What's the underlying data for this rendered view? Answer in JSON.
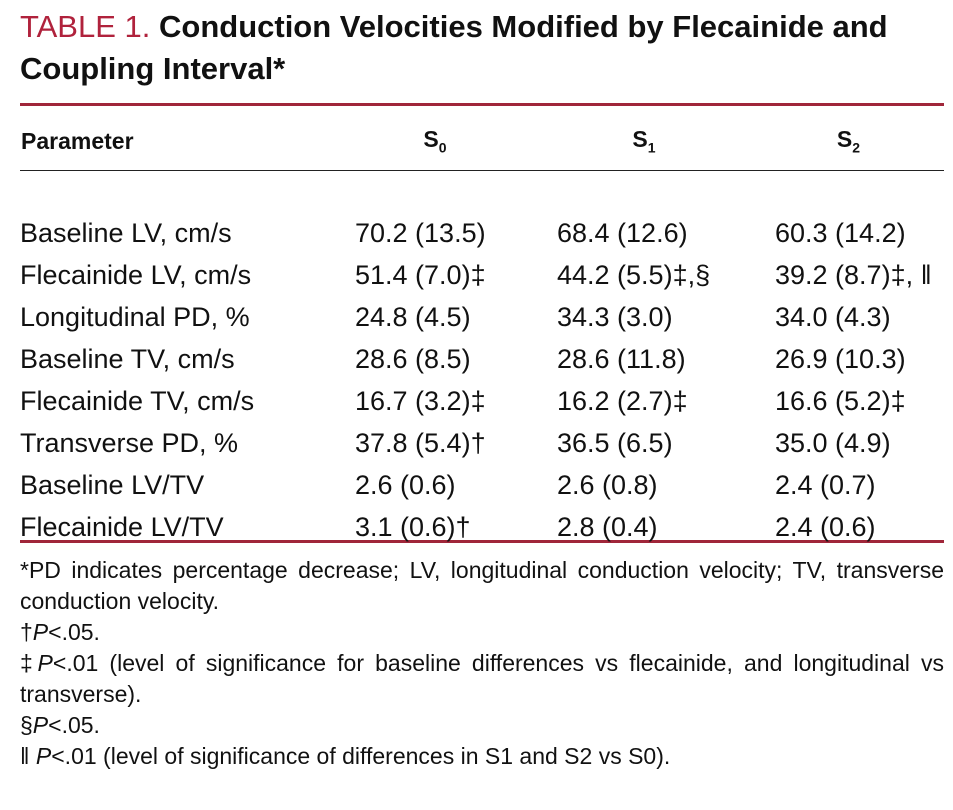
{
  "title": {
    "label": "TABLE 1.",
    "text": "Conduction Velocities Modified by Flecainide and Coupling Interval*"
  },
  "table": {
    "header": [
      {
        "main": "Parameter"
      },
      {
        "main": "S",
        "sub": "0"
      },
      {
        "main": "S",
        "sub": "1"
      },
      {
        "main": "S",
        "sub": "2"
      }
    ],
    "rows": [
      [
        "Baseline LV, cm/s",
        "70.2 (13.5)",
        "68.4 (12.6)",
        "60.3 (14.2)"
      ],
      [
        "Flecainide LV, cm/s",
        "51.4 (7.0)‡",
        "44.2 (5.5)‡,§",
        "39.2 (8.7)‡, ‖"
      ],
      [
        "Longitudinal PD, %",
        "24.8 (4.5)",
        "34.3 (3.0)",
        "34.0 (4.3)"
      ],
      [
        "Baseline TV, cm/s",
        "28.6 (8.5)",
        "28.6 (11.8)",
        "26.9 (10.3)"
      ],
      [
        "Flecainide TV, cm/s",
        "16.7 (3.2)‡",
        "16.2 (2.7)‡",
        "16.6 (5.2)‡"
      ],
      [
        "Transverse PD, %",
        "37.8 (5.4)†",
        "36.5 (6.5)",
        "35.0 (4.9)"
      ],
      [
        "Baseline LV/TV",
        "2.6 (0.6)",
        "2.6 (0.8)",
        "2.4 (0.7)"
      ],
      [
        "Flecainide LV/TV",
        "3.1 (0.6)†",
        "2.8 (0.4)",
        "2.4 (0.6)"
      ]
    ]
  },
  "footnotes": [
    {
      "text": "*PD indicates percentage decrease; LV, longitudinal conduction velocity; TV, transverse conduction velocity."
    },
    {
      "symbol": "†",
      "italic": "P",
      "text": "<.05."
    },
    {
      "symbol": "‡",
      "italic": "P",
      "text": "<.01 (level of significance for baseline differences vs flecainide, and longitudinal vs transverse)."
    },
    {
      "symbol": "§",
      "italic": "P",
      "text": "<.05."
    },
    {
      "symbol": "‖ ",
      "italic": "P",
      "text": "<.01 (level of significance of differences in S1 and S2 vs S0)."
    }
  ]
}
